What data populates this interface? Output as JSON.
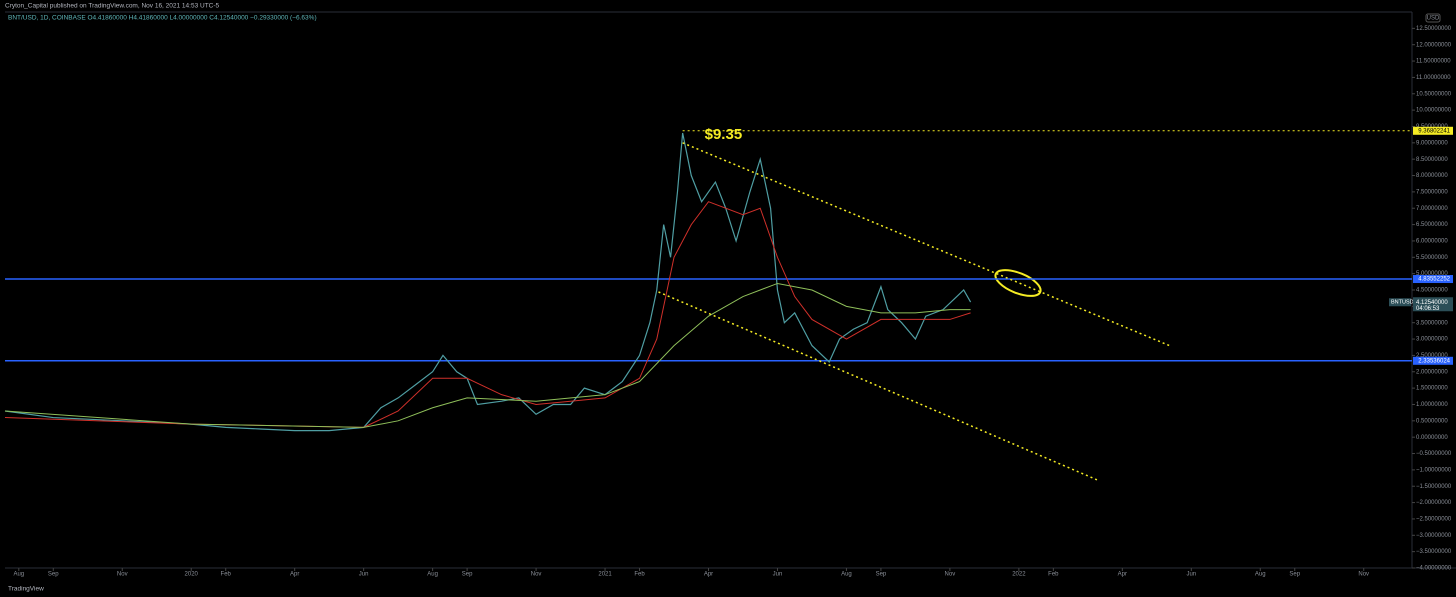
{
  "header": {
    "publisher": "Cryton_Capital published on TradingView.com, Nov 16, 2021 14:53 UTC-5",
    "legend": "BNT/USD, 1D, COINBASE  O4.41860000  H4.41860000  L4.00000000  C4.12540000  −0.29330000 (−6.63%)",
    "currency": "USD"
  },
  "footer": {
    "brand": "TradingView"
  },
  "chart_data": {
    "type": "line",
    "annotation": "$9.35",
    "xlim": [
      -0.4,
      40.4
    ],
    "ylim": [
      -4.0,
      13.0
    ],
    "grid": false,
    "xticks": [
      {
        "value": 0,
        "label": "Aug"
      },
      {
        "value": 1,
        "label": "Sep"
      },
      {
        "value": 3,
        "label": "Nov"
      },
      {
        "value": 5,
        "label": "2020"
      },
      {
        "value": 6,
        "label": "Feb"
      },
      {
        "value": 8,
        "label": "Apr"
      },
      {
        "value": 10,
        "label": "Jun"
      },
      {
        "value": 12,
        "label": "Aug"
      },
      {
        "value": 13,
        "label": "Sep"
      },
      {
        "value": 15,
        "label": "Nov"
      },
      {
        "value": 17,
        "label": "2021"
      },
      {
        "value": 18,
        "label": "Feb"
      },
      {
        "value": 20,
        "label": "Apr"
      },
      {
        "value": 22,
        "label": "Jun"
      },
      {
        "value": 24,
        "label": "Aug"
      },
      {
        "value": 25,
        "label": "Sep"
      },
      {
        "value": 27,
        "label": "Nov"
      },
      {
        "value": 29,
        "label": "2022"
      },
      {
        "value": 30,
        "label": "Feb"
      },
      {
        "value": 32,
        "label": "Apr"
      },
      {
        "value": 34,
        "label": "Jun"
      },
      {
        "value": 36,
        "label": "Aug"
      },
      {
        "value": 37,
        "label": "Sep"
      },
      {
        "value": 39,
        "label": "Nov"
      }
    ],
    "yticks": [
      {
        "value": 12.5,
        "label": "12.50000000"
      },
      {
        "value": 12,
        "label": "12.00000000"
      },
      {
        "value": 11.5,
        "label": "11.50000000"
      },
      {
        "value": 11,
        "label": "11.00000000"
      },
      {
        "value": 10.5,
        "label": "10.50000000"
      },
      {
        "value": 10,
        "label": "10.00000000"
      },
      {
        "value": 9.5,
        "label": "9.50000000"
      },
      {
        "value": 9,
        "label": "9.00000000"
      },
      {
        "value": 8.5,
        "label": "8.50000000"
      },
      {
        "value": 8,
        "label": "8.00000000"
      },
      {
        "value": 7.5,
        "label": "7.50000000"
      },
      {
        "value": 7,
        "label": "7.00000000"
      },
      {
        "value": 6.5,
        "label": "6.50000000"
      },
      {
        "value": 6,
        "label": "6.00000000"
      },
      {
        "value": 5.5,
        "label": "5.50000000"
      },
      {
        "value": 5,
        "label": "5.00000000"
      },
      {
        "value": 4.5,
        "label": "4.50000000"
      },
      {
        "value": 4,
        "label": "4.00000000"
      },
      {
        "value": 3.5,
        "label": "3.50000000"
      },
      {
        "value": 3,
        "label": "3.00000000"
      },
      {
        "value": 2.5,
        "label": "2.50000000"
      },
      {
        "value": 2,
        "label": "2.00000000"
      },
      {
        "value": 1.5,
        "label": "1.50000000"
      },
      {
        "value": 1,
        "label": "1.00000000"
      },
      {
        "value": 0.5,
        "label": "0.50000000"
      },
      {
        "value": 0,
        "label": "0.00000000"
      },
      {
        "value": -0.5,
        "label": "−0.50000000"
      },
      {
        "value": -1,
        "label": "−1.00000000"
      },
      {
        "value": -1.5,
        "label": "−1.50000000"
      },
      {
        "value": -2,
        "label": "−2.00000000"
      },
      {
        "value": -2.5,
        "label": "−2.50000000"
      },
      {
        "value": -3,
        "label": "−3.00000000"
      },
      {
        "value": -3.5,
        "label": "−3.50000000"
      },
      {
        "value": -4,
        "label": "−4.00000000"
      }
    ],
    "series": [
      {
        "color": "#4f9ea3",
        "x": [
          -0.4,
          1,
          3,
          5,
          6,
          7,
          8,
          9,
          10,
          10.5,
          11,
          11.5,
          12,
          12.3,
          12.7,
          13,
          13.3,
          14,
          14.5,
          15,
          15.5,
          16,
          16.4,
          17,
          17.5,
          18,
          18.3,
          18.5,
          18.7,
          18.9,
          19.1,
          19.25,
          19.5,
          19.8,
          20.2,
          20.5,
          20.8,
          21.2,
          21.5,
          21.8,
          22,
          22.2,
          22.5,
          23,
          23.5,
          23.8,
          24.2,
          24.6,
          25,
          25.2,
          25.6,
          26,
          26.3,
          26.8,
          27.2,
          27.4,
          27.6
        ],
        "values": [
          0.8,
          0.6,
          0.5,
          0.4,
          0.3,
          0.25,
          0.2,
          0.2,
          0.3,
          0.9,
          1.2,
          1.6,
          2.0,
          2.5,
          2.0,
          1.8,
          1.0,
          1.1,
          1.2,
          0.7,
          1.0,
          1.0,
          1.5,
          1.3,
          1.7,
          2.5,
          3.5,
          4.5,
          6.5,
          5.5,
          7.5,
          9.3,
          8.0,
          7.2,
          7.8,
          7.0,
          6.0,
          7.5,
          8.5,
          7.0,
          4.5,
          3.5,
          3.8,
          2.8,
          2.3,
          3.0,
          3.3,
          3.5,
          4.6,
          3.9,
          3.5,
          3.0,
          3.7,
          3.9,
          4.3,
          4.5,
          4.13
        ]
      },
      {
        "color": "#d0302a",
        "x": [
          -0.4,
          5,
          10,
          11,
          12,
          13,
          14,
          15,
          16,
          17,
          18,
          18.5,
          19,
          19.5,
          20,
          21,
          21.5,
          22,
          22.5,
          23,
          24,
          25,
          26,
          27,
          27.6
        ],
        "values": [
          0.6,
          0.4,
          0.3,
          0.8,
          1.8,
          1.8,
          1.3,
          1.0,
          1.1,
          1.2,
          1.8,
          3.0,
          5.5,
          6.5,
          7.2,
          6.8,
          7.0,
          5.5,
          4.3,
          3.6,
          3.0,
          3.6,
          3.6,
          3.6,
          3.8
        ]
      },
      {
        "color": "#8fbf5a",
        "x": [
          -0.4,
          5,
          10,
          11,
          12,
          13,
          15,
          17,
          18,
          19,
          20,
          21,
          22,
          23,
          24,
          25,
          26,
          27,
          27.6
        ],
        "values": [
          0.8,
          0.4,
          0.3,
          0.5,
          0.9,
          1.2,
          1.1,
          1.3,
          1.7,
          2.8,
          3.7,
          4.3,
          4.7,
          4.5,
          4.0,
          3.8,
          3.8,
          3.9,
          3.9
        ]
      }
    ],
    "levels": [
      {
        "value": 9.36802241,
        "color": "#f5ec24"
      },
      {
        "value": 4.83552252,
        "color": "#2962ff"
      },
      {
        "value": 2.33536024,
        "color": "#2962ff"
      }
    ],
    "trendlines": [
      {
        "x": [
          19.25,
          33.39
        ],
        "y": [
          9.0,
          2.79
        ]
      },
      {
        "x": [
          18.55,
          31.28
        ],
        "y": [
          4.44,
          -1.31
        ]
      }
    ],
    "price_tag": {
      "symbol": "BNTUSD",
      "value": 4.1254,
      "label": "4.12540000",
      "countdown": "04:06:53"
    }
  }
}
